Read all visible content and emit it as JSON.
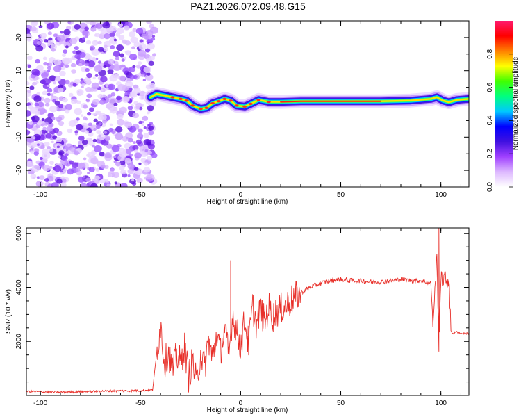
{
  "title": "PAZ1.2026.072.09.48.G15",
  "chart_data": [
    {
      "type": "heatmap",
      "xlabel": "Height of straight line (km)",
      "ylabel": "Frequency (Hz)",
      "xlim": [
        -107,
        114
      ],
      "ylim": [
        -25,
        25
      ],
      "xticks": [
        -100,
        -50,
        0,
        50,
        100
      ],
      "yticks": [
        -20,
        -10,
        0,
        10,
        20
      ],
      "grid": false,
      "colorbar": {
        "label": "Normalized spectral amplitude",
        "range": [
          0,
          1
        ],
        "ticks": [
          0.0,
          0.2,
          0.4,
          0.6,
          0.8
        ],
        "colormap": [
          "#ffffff",
          "#ddb8ff",
          "#a040ff",
          "#4010e0",
          "#0000ff",
          "#00c8ff",
          "#00ff80",
          "#40ff00",
          "#ffff00",
          "#ff8000",
          "#ff0000",
          "#ff1a6e"
        ]
      },
      "noise_region_x": [
        -107,
        -45
      ],
      "carrier_track": [
        {
          "x": -45,
          "f": 2.0
        },
        {
          "x": -42,
          "f": 3.0
        },
        {
          "x": -38,
          "f": 2.5
        },
        {
          "x": -34,
          "f": 2.0
        },
        {
          "x": -30,
          "f": 1.5
        },
        {
          "x": -27,
          "f": 1.0
        },
        {
          "x": -24,
          "f": -0.5
        },
        {
          "x": -20,
          "f": -1.5
        },
        {
          "x": -17,
          "f": -1.2
        },
        {
          "x": -14,
          "f": 0.2
        },
        {
          "x": -11,
          "f": 0.8
        },
        {
          "x": -8,
          "f": 1.5
        },
        {
          "x": -5,
          "f": 1.0
        },
        {
          "x": -2,
          "f": -0.5
        },
        {
          "x": 2,
          "f": -0.8
        },
        {
          "x": 5,
          "f": 0.0
        },
        {
          "x": 9,
          "f": 1.2
        },
        {
          "x": 14,
          "f": 0.6
        },
        {
          "x": 20,
          "f": 0.6
        },
        {
          "x": 30,
          "f": 0.8
        },
        {
          "x": 50,
          "f": 0.8
        },
        {
          "x": 70,
          "f": 0.8
        },
        {
          "x": 85,
          "f": 1.0
        },
        {
          "x": 95,
          "f": 1.5
        },
        {
          "x": 98,
          "f": 2.0
        },
        {
          "x": 101,
          "f": 1.0
        },
        {
          "x": 104,
          "f": 0.5
        },
        {
          "x": 108,
          "f": 1.2
        },
        {
          "x": 114,
          "f": 1.5
        }
      ]
    },
    {
      "type": "line",
      "xlabel": "Height of straight line (km)",
      "ylabel": "SNR (10 * v/v)",
      "xlim": [
        -107,
        114
      ],
      "ylim": [
        0,
        6200
      ],
      "xticks": [
        -100,
        -50,
        0,
        50,
        100
      ],
      "yticks": [
        2000,
        4000,
        6000
      ],
      "grid": false,
      "color": "#e8302a",
      "series": [
        {
          "x": [
            -107,
            -90,
            -70,
            -50,
            -44,
            -42,
            -40,
            -38,
            -36,
            -34,
            -32,
            -30,
            -28,
            -26,
            -24,
            -22,
            -20,
            -18,
            -16,
            -14,
            -12,
            -10,
            -8,
            -7,
            -6,
            -4,
            -2,
            0,
            2,
            4,
            6,
            8,
            10,
            12,
            14,
            16,
            18,
            20,
            22,
            25,
            28,
            32,
            36,
            40,
            45,
            50,
            55,
            60,
            65,
            70,
            75,
            80,
            85,
            90,
            93,
            95,
            96,
            97,
            98,
            99,
            100,
            101,
            102,
            103,
            104,
            105,
            106,
            108,
            110,
            114
          ],
          "y": [
            150,
            120,
            160,
            180,
            200,
            1500,
            2650,
            1200,
            1600,
            900,
            1500,
            1200,
            1800,
            700,
            1300,
            400,
            1600,
            1000,
            2100,
            1300,
            2300,
            1600,
            2500,
            2000,
            1400,
            3000,
            2400,
            1800,
            2800,
            1900,
            3300,
            2600,
            3200,
            2700,
            3300,
            2900,
            3100,
            3200,
            3300,
            3500,
            3700,
            3900,
            4050,
            4150,
            4250,
            4300,
            4250,
            4250,
            4200,
            4200,
            4250,
            4300,
            4250,
            4250,
            4200,
            4150,
            2700,
            3800,
            5100,
            1900,
            4300,
            4300,
            4350,
            4200,
            4350,
            2400,
            2300,
            2350,
            2300,
            2300
          ]
        }
      ],
      "spikes": [
        {
          "x": -5,
          "y": 5000
        },
        {
          "x": 99,
          "y": 6200
        }
      ]
    }
  ]
}
